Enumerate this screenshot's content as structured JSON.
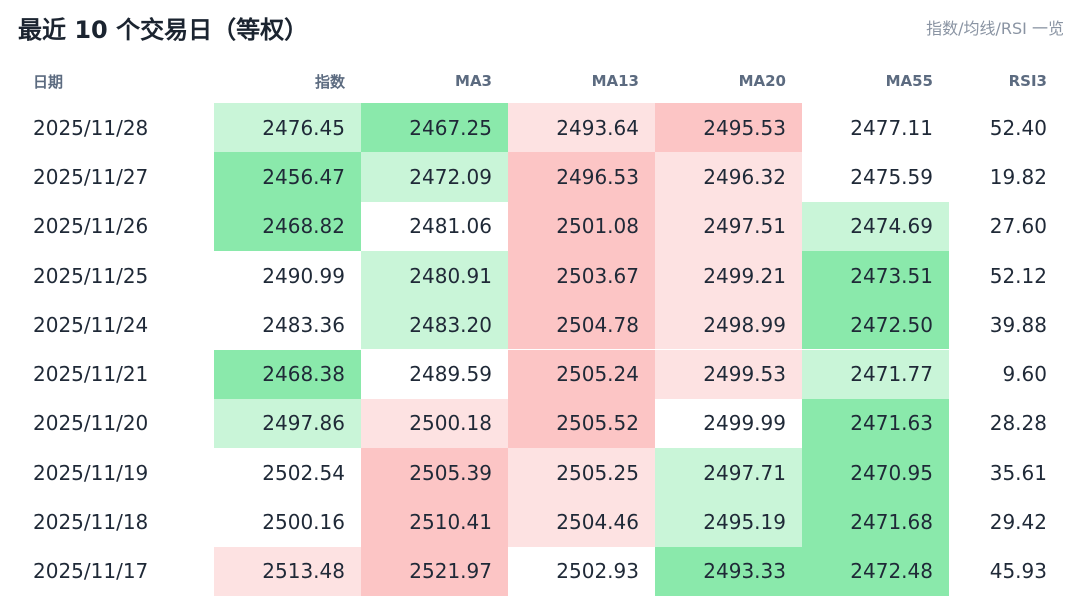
{
  "header": {
    "title": "最近 10 个交易日（等权）",
    "subtitle": "指数/均线/RSI 一览"
  },
  "table": {
    "columns": [
      "日期",
      "指数",
      "MA3",
      "MA13",
      "MA20",
      "MA55",
      "RSI3"
    ],
    "rows": [
      [
        "2025/11/28",
        "2476.45",
        "2467.25",
        "2493.64",
        "2495.53",
        "2477.11",
        "52.40"
      ],
      [
        "2025/11/27",
        "2456.47",
        "2472.09",
        "2496.53",
        "2496.32",
        "2475.59",
        "19.82"
      ],
      [
        "2025/11/26",
        "2468.82",
        "2481.06",
        "2501.08",
        "2497.51",
        "2474.69",
        "27.60"
      ],
      [
        "2025/11/25",
        "2490.99",
        "2480.91",
        "2503.67",
        "2499.21",
        "2473.51",
        "52.12"
      ],
      [
        "2025/11/24",
        "2483.36",
        "2483.20",
        "2504.78",
        "2498.99",
        "2472.50",
        "39.88"
      ],
      [
        "2025/11/21",
        "2468.38",
        "2489.59",
        "2505.24",
        "2499.53",
        "2471.77",
        "9.60"
      ],
      [
        "2025/11/20",
        "2497.86",
        "2500.18",
        "2505.52",
        "2499.99",
        "2471.63",
        "28.28"
      ],
      [
        "2025/11/19",
        "2502.54",
        "2505.39",
        "2505.25",
        "2497.71",
        "2470.95",
        "35.61"
      ],
      [
        "2025/11/18",
        "2500.16",
        "2510.41",
        "2504.46",
        "2495.19",
        "2471.68",
        "29.42"
      ],
      [
        "2025/11/17",
        "2513.48",
        "2521.97",
        "2502.93",
        "2493.33",
        "2472.48",
        "45.93"
      ]
    ],
    "cell_colors": [
      [
        null,
        "#c9f5d8",
        "#8ae9ab",
        "#fde2e2",
        "#fcc5c5",
        null,
        null
      ],
      [
        null,
        "#8ae9ab",
        "#c9f5d8",
        "#fcc5c5",
        "#fde2e2",
        null,
        null
      ],
      [
        null,
        "#8ae9ab",
        null,
        "#fcc5c5",
        "#fde2e2",
        "#c9f5d8",
        null
      ],
      [
        null,
        null,
        "#c9f5d8",
        "#fcc5c5",
        "#fde2e2",
        "#8ae9ab",
        null
      ],
      [
        null,
        null,
        "#c9f5d8",
        "#fcc5c5",
        "#fde2e2",
        "#8ae9ab",
        null
      ],
      [
        null,
        "#8ae9ab",
        null,
        "#fcc5c5",
        "#fde2e2",
        "#c9f5d8",
        null
      ],
      [
        null,
        "#c9f5d8",
        "#fde2e2",
        "#fcc5c5",
        null,
        "#8ae9ab",
        null
      ],
      [
        null,
        null,
        "#fcc5c5",
        "#fde2e2",
        "#c9f5d8",
        "#8ae9ab",
        null
      ],
      [
        null,
        null,
        "#fcc5c5",
        "#fde2e2",
        "#c9f5d8",
        "#8ae9ab",
        null
      ],
      [
        null,
        "#fde2e2",
        "#fcc5c5",
        null,
        "#8ae9ab",
        "#8ae9ab",
        null
      ]
    ]
  }
}
